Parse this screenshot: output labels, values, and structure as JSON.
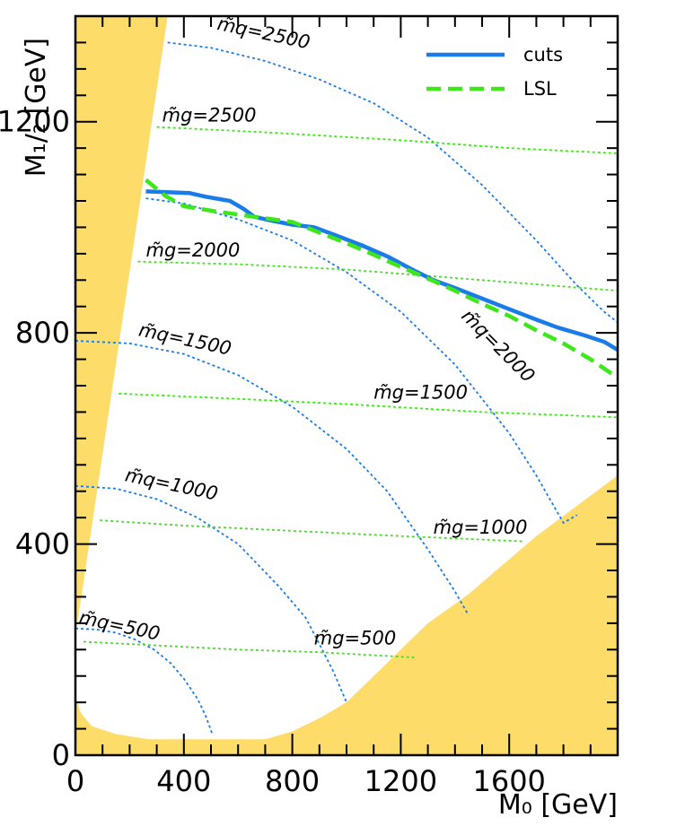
{
  "chart_data": {
    "type": "line",
    "xlabel": "M₀ [GeV]",
    "ylabel": "M₁/₂ [GeV]",
    "xlim": [
      0,
      2000
    ],
    "ylim": [
      0,
      1400
    ],
    "x_ticks": [
      0,
      400,
      800,
      1200,
      1600
    ],
    "y_ticks": [
      0,
      400,
      800,
      1200
    ],
    "x_tick_labels": [
      "0",
      "400",
      "800",
      "1200",
      "1600"
    ],
    "y_tick_labels": [
      "0",
      "400",
      "800",
      "1200"
    ],
    "legend": {
      "placement": "top-right",
      "entries": [
        "cuts",
        "LSL"
      ]
    },
    "colors": {
      "cuts": "#1a7ce8",
      "LSL": "#3ee61a",
      "squark_contours": "#1a7ce8",
      "gluino_contours": "#3ee61a",
      "excluded": "#fddc6a",
      "frame": "#000000"
    },
    "series": [
      {
        "name": "cuts",
        "x": [
          260,
          420,
          480,
          570,
          620,
          660,
          720,
          800,
          880,
          960,
          1060,
          1150,
          1250,
          1320,
          1400,
          1500,
          1600,
          1700,
          1780,
          1880,
          1950,
          2000
        ],
        "y": [
          1068,
          1065,
          1058,
          1050,
          1035,
          1020,
          1013,
          1005,
          1000,
          985,
          965,
          945,
          918,
          900,
          885,
          865,
          845,
          825,
          810,
          795,
          783,
          768
        ]
      },
      {
        "name": "LSL",
        "x": [
          260,
          330,
          400,
          520,
          660,
          800,
          900,
          1000,
          1100,
          1200,
          1300,
          1400,
          1500,
          1600,
          1700,
          1800,
          1900,
          2000
        ],
        "y": [
          1090,
          1060,
          1040,
          1030,
          1020,
          1010,
          990,
          970,
          948,
          925,
          903,
          880,
          855,
          832,
          805,
          780,
          750,
          715
        ]
      }
    ],
    "squark_contours": [
      {
        "label": "m̃q=500",
        "m": 500,
        "x": [
          0,
          80,
          150,
          220,
          290,
          350,
          400,
          450,
          480,
          505
        ],
        "y": [
          240,
          238,
          232,
          219,
          200,
          175,
          145,
          107,
          75,
          40
        ]
      },
      {
        "label": "m̃q=1000",
        "m": 1000,
        "x": [
          0,
          150,
          300,
          450,
          600,
          750,
          850,
          950,
          1000
        ],
        "y": [
          510,
          505,
          485,
          450,
          400,
          320,
          260,
          160,
          100
        ]
      },
      {
        "label": "m̃q=1500",
        "m": 1500,
        "x": [
          0,
          200,
          400,
          600,
          800,
          1000,
          1150,
          1300,
          1400,
          1450
        ],
        "y": [
          785,
          780,
          760,
          720,
          660,
          580,
          500,
          390,
          310,
          265
        ]
      },
      {
        "label": "m̃q=2000",
        "m": 2000,
        "x": [
          260,
          400,
          600,
          800,
          1000,
          1200,
          1400,
          1600,
          1700,
          1800,
          1850
        ],
        "y": [
          1055,
          1045,
          1015,
          975,
          915,
          840,
          740,
          610,
          530,
          440,
          455
        ]
      },
      {
        "label": "m̃q=2500",
        "m": 2500,
        "x": [
          340,
          500,
          700,
          900,
          1100,
          1300,
          1500,
          1700,
          1850,
          1950,
          2000
        ],
        "y": [
          1350,
          1340,
          1315,
          1280,
          1235,
          1170,
          1080,
          975,
          890,
          840,
          820
        ]
      }
    ],
    "gluino_contours": [
      {
        "label": "m̃g=500",
        "m": 500,
        "x": [
          30,
          300,
          600,
          900,
          1250
        ],
        "y": [
          215,
          208,
          200,
          195,
          185
        ]
      },
      {
        "label": "m̃g=1000",
        "m": 1000,
        "x": [
          90,
          400,
          800,
          1200,
          1650
        ],
        "y": [
          445,
          435,
          425,
          415,
          405
        ]
      },
      {
        "label": "m̃g=1500",
        "m": 1500,
        "x": [
          160,
          600,
          1000,
          1500,
          2000
        ],
        "y": [
          685,
          675,
          665,
          650,
          640
        ]
      },
      {
        "label": "m̃g=2000",
        "m": 2000,
        "x": [
          230,
          600,
          1000,
          1500,
          2000
        ],
        "y": [
          935,
          930,
          920,
          900,
          880
        ]
      },
      {
        "label": "m̃g=2500",
        "m": 2500,
        "x": [
          300,
          700,
          1200,
          1600,
          2000
        ],
        "y": [
          1190,
          1180,
          1165,
          1150,
          1140
        ]
      }
    ],
    "excluded_regions": [
      {
        "name": "left-wedge",
        "x": [
          0,
          0,
          340,
          0
        ],
        "y": [
          225,
          1400,
          1400,
          225
        ]
      },
      {
        "name": "bottom",
        "x": [
          0,
          20,
          60,
          150,
          270,
          700,
          800,
          900,
          1000,
          1100,
          1200,
          1300,
          1450,
          1700,
          2000,
          2000,
          0
        ],
        "y": [
          110,
          80,
          55,
          40,
          30,
          30,
          45,
          70,
          100,
          150,
          200,
          250,
          305,
          415,
          530,
          0,
          0
        ]
      }
    ]
  }
}
